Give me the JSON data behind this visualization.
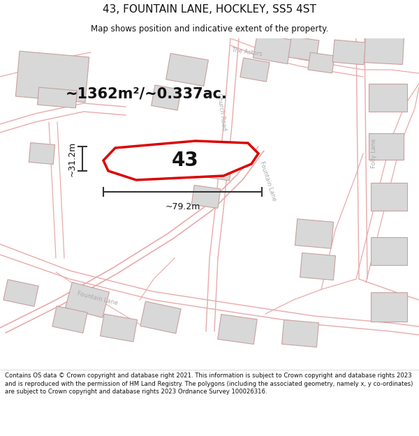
{
  "title": "43, FOUNTAIN LANE, HOCKLEY, SS5 4ST",
  "subtitle": "Map shows position and indicative extent of the property.",
  "area_text": "~1362m²/~0.337ac.",
  "label_43": "43",
  "dim_width": "~79.2m",
  "dim_height": "~31.2m",
  "footer": "Contains OS data © Crown copyright and database right 2021. This information is subject to Crown copyright and database rights 2023 and is reproduced with the permission of HM Land Registry. The polygons (including the associated geometry, namely x, y co-ordinates) are subject to Crown copyright and database rights 2023 Ordnance Survey 100026316.",
  "bg_color": "#f9f7f5",
  "road_color": "#e8aaaa",
  "road_fill": "#f5f5f5",
  "building_color": "#d8d8d8",
  "building_edge": "#c8a0a0",
  "highlight_color": "#dd0000",
  "text_color": "#111111",
  "label_color": "#aaaaaa",
  "dim_color": "#333333",
  "figsize": [
    6.0,
    6.25
  ],
  "dpi": 100
}
